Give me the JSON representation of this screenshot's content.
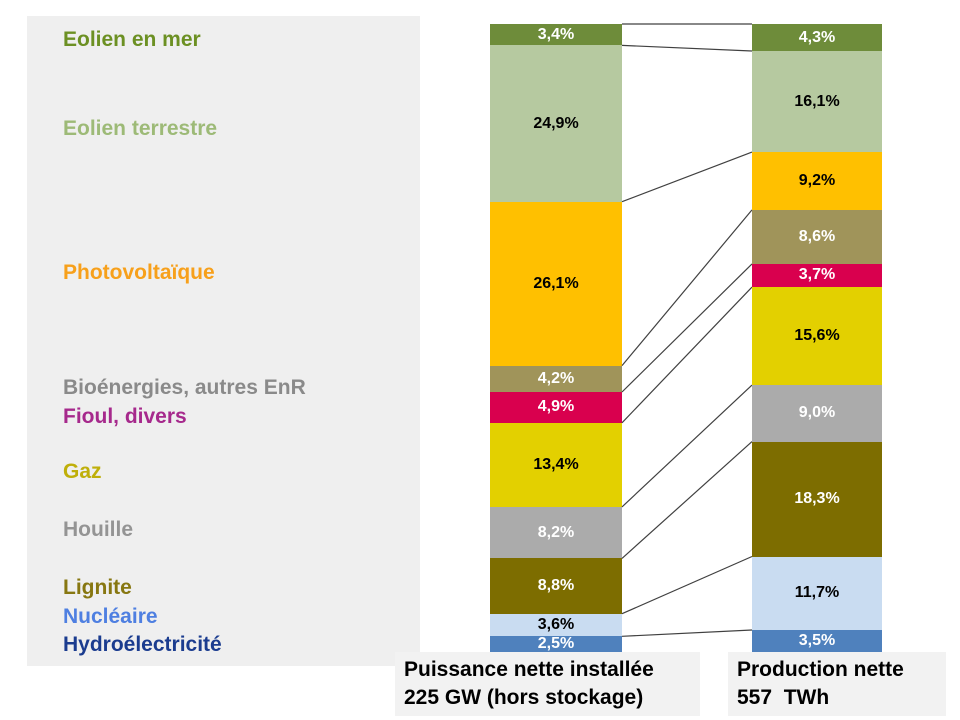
{
  "chart_data": {
    "type": "bar",
    "subtype": "stacked-percentage-comparison",
    "unit": "%",
    "legend_position": "left",
    "grid": false,
    "categories": [
      "Eolien en mer",
      "Eolien terrestre",
      "Photovoltaïque",
      "Bioénergies, autres EnR",
      "Fioul, divers",
      "Gaz",
      "Houille",
      "Lignite",
      "Nucléaire",
      "Hydroélectricité"
    ],
    "series": [
      {
        "name": "Puissance nette installée 225 GW (hors stockage)",
        "values": [
          3.4,
          24.9,
          26.1,
          4.2,
          4.9,
          13.4,
          8.2,
          8.8,
          3.6,
          2.5
        ]
      },
      {
        "name": "Production nette 557 TWh",
        "values": [
          4.3,
          16.1,
          9.2,
          8.6,
          3.7,
          15.6,
          9.0,
          18.3,
          11.7,
          3.5
        ]
      }
    ],
    "items": [
      {
        "name": "Eolien en mer",
        "legend_color": "#6C9023",
        "bar_color": "#6E8C3A",
        "label_color": "#FFFFFF",
        "capacity_pct": 3.4,
        "capacity_label": "3,4%",
        "production_pct": 4.3,
        "production_label": "4,3%"
      },
      {
        "name": "Eolien terrestre",
        "legend_color": "#9DBA77",
        "bar_color": "#B6C9A0",
        "label_color": "#000000",
        "capacity_pct": 24.9,
        "capacity_label": "24,9%",
        "production_pct": 16.1,
        "production_label": "16,1%"
      },
      {
        "name": "Photovoltaïque",
        "legend_color": "#F7A01B",
        "bar_color": "#FFC000",
        "label_color": "#000000",
        "capacity_pct": 26.1,
        "capacity_label": "26,1%",
        "production_pct": 9.2,
        "production_label": "9,2%"
      },
      {
        "name": "Bioénergies, autres EnR",
        "legend_color": "#8A8A8A",
        "bar_color": "#A0945A",
        "label_color": "#FFFFFF",
        "capacity_pct": 4.2,
        "capacity_label": "4,2%",
        "production_pct": 8.6,
        "production_label": "8,6%"
      },
      {
        "name": "Fioul, divers",
        "legend_color": "#A6298C",
        "bar_color": "#D9004E",
        "label_color": "#FFFFFF",
        "capacity_pct": 4.9,
        "capacity_label": "4,9%",
        "production_pct": 3.7,
        "production_label": "3,7%"
      },
      {
        "name": "Gaz",
        "legend_color": "#BFAF0A",
        "bar_color": "#E3D000",
        "label_color": "#000000",
        "capacity_pct": 13.4,
        "capacity_label": "13,4%",
        "production_pct": 15.6,
        "production_label": "15,6%"
      },
      {
        "name": "Houille",
        "legend_color": "#949494",
        "bar_color": "#ABABAB",
        "label_color": "#FFFFFF",
        "capacity_pct": 8.2,
        "capacity_label": "8,2%",
        "production_pct": 9.0,
        "production_label": "9,0%"
      },
      {
        "name": "Lignite",
        "legend_color": "#877711",
        "bar_color": "#7D6D00",
        "label_color": "#FFFFFF",
        "capacity_pct": 8.8,
        "capacity_label": "8,8%",
        "production_pct": 18.3,
        "production_label": "18,3%"
      },
      {
        "name": "Nucléaire",
        "legend_color": "#4E7FE1",
        "bar_color": "#C9DCF1",
        "label_color": "#000000",
        "capacity_pct": 3.6,
        "capacity_label": "3,6%",
        "production_pct": 11.7,
        "production_label": "11,7%"
      },
      {
        "name": "Hydroélectricité",
        "legend_color": "#1B3C8F",
        "bar_color": "#4F81BD",
        "label_color": "#FFFFFF",
        "capacity_pct": 2.5,
        "capacity_label": "2,5%",
        "production_pct": 3.5,
        "production_label": "3,5%"
      }
    ],
    "capacity_footer": {
      "line1": "Puissance nette installée",
      "line2": "225 GW (hors stockage)"
    },
    "production_footer": {
      "line1": "Production nette",
      "line2": "557  TWh"
    },
    "connector_line_color": "#404040",
    "legend_panel_color": "#EFEFEF",
    "footer_box_color": "#F2F2F2"
  }
}
